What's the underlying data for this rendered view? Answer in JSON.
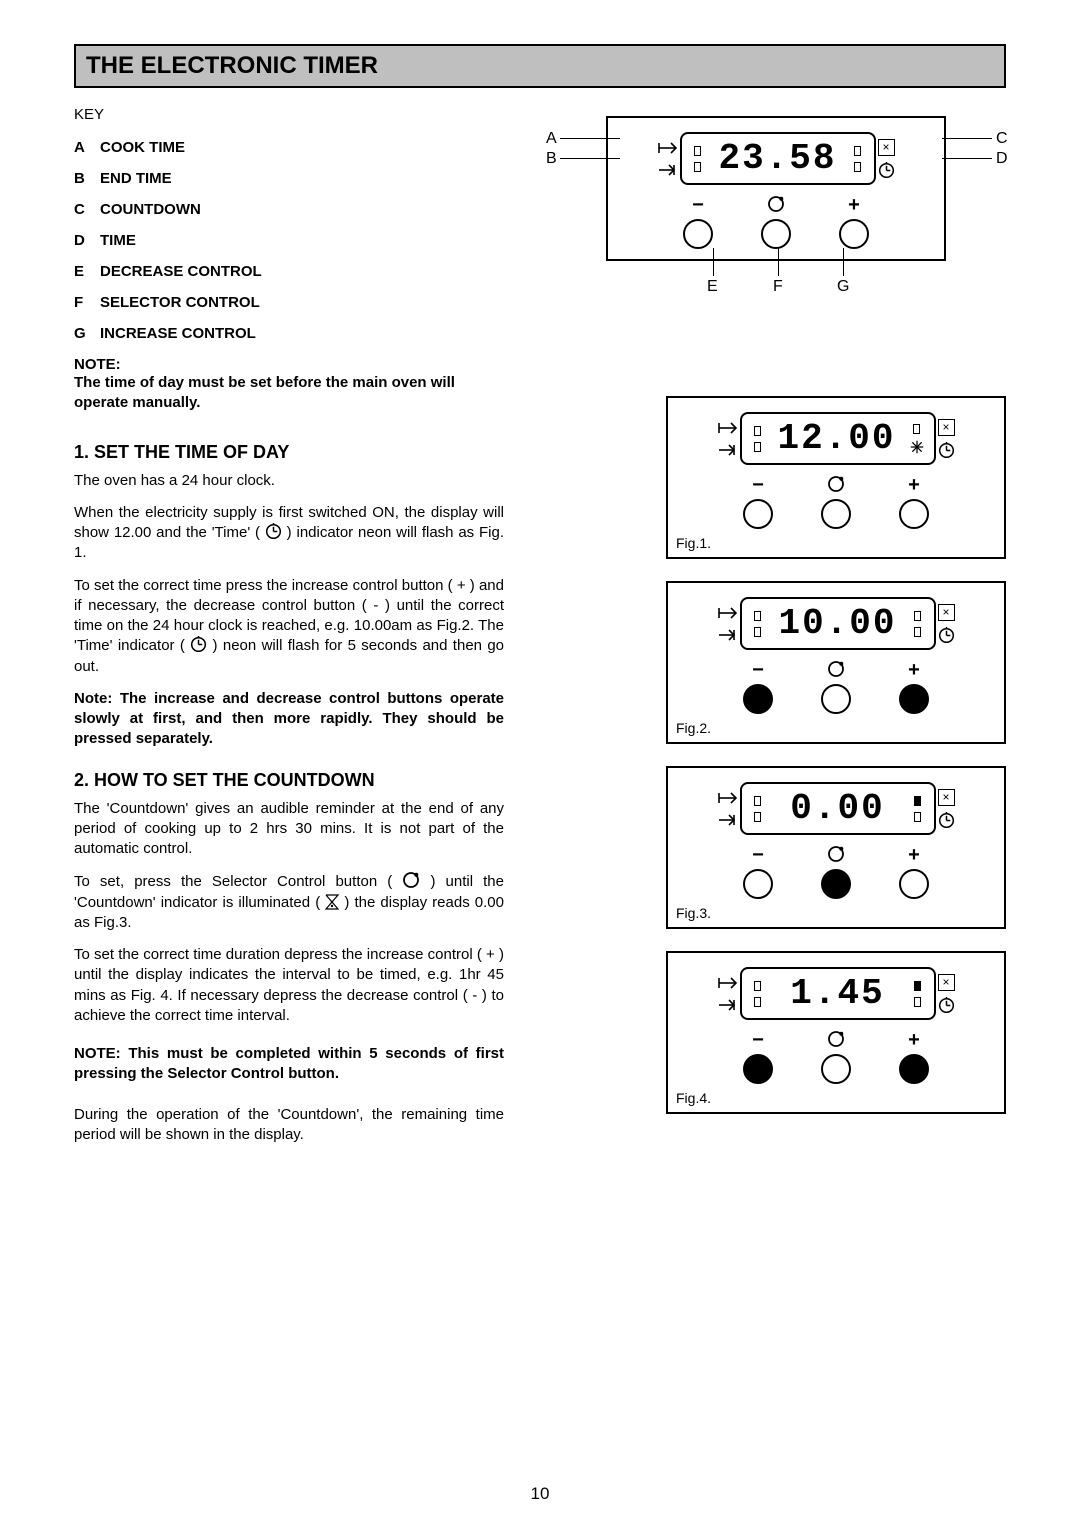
{
  "title": "THE ELECTRONIC TIMER",
  "key_heading": "KEY",
  "key_items": [
    {
      "letter": "A",
      "label": "COOK TIME"
    },
    {
      "letter": "B",
      "label": "END TIME"
    },
    {
      "letter": "C",
      "label": "COUNTDOWN"
    },
    {
      "letter": "D",
      "label": "TIME"
    },
    {
      "letter": "E",
      "label": "DECREASE CONTROL"
    },
    {
      "letter": "F",
      "label": "SELECTOR CONTROL"
    },
    {
      "letter": "G",
      "label": "INCREASE CONTROL"
    }
  ],
  "note": {
    "label": "NOTE:",
    "text": "The time of day must be set before the main oven will operate manually."
  },
  "section1": {
    "heading": "1.  SET THE TIME OF DAY",
    "p1": "The oven has a 24 hour clock.",
    "p2a": "When the electricity supply is first switched ON, the display will show 12.00 and the 'Time' (",
    "p2b": ") indicator neon will flash as Fig. 1.",
    "p3a": "To set the correct time press the increase control button ( + ) and if necessary, the decrease control button ( - ) until the correct time on the 24 hour clock is reached, e.g. 10.00am as Fig.2.   The 'Time' indicator (",
    "p3b": ") neon will flash for 5 seconds and then go out.",
    "p4": "Note: The increase and decrease control buttons operate slowly at first, and then more rapidly. They should be pressed separately."
  },
  "section2": {
    "heading": "2.  HOW TO SET THE COUNTDOWN",
    "p1": "The 'Countdown' gives an audible reminder at the end of any period of cooking up to 2 hrs 30 mins.  It is not part of the automatic control.",
    "p2a": "To set, press the Selector Control button ( ",
    "p2b": " ) until the 'Countdown' indicator is illuminated ( ",
    "p2c": " ) the display reads 0.00 as Fig.3.",
    "p3": "To set the correct time duration depress the increase control ( + ) until the display indicates the interval to be timed, e.g. 1hr 45 mins as Fig. 4.  If necessary depress the decrease control ( - ) to achieve the correct time interval.",
    "p4": "NOTE:  This must be completed within 5 seconds of first pressing the Selector Control button.",
    "p5": "During the operation of the 'Countdown', the remaining time period will be shown in the display."
  },
  "main_diagram": {
    "digits": "23.58",
    "labels": {
      "A": "A",
      "B": "B",
      "C": "C",
      "D": "D",
      "E": "E",
      "F": "F",
      "G": "G"
    }
  },
  "figures": [
    {
      "label": "Fig.1.",
      "digits": "12.00",
      "left_ind": [
        "empty",
        "empty"
      ],
      "right_ind": [
        "empty",
        "star"
      ],
      "buttons": [
        "open",
        "open",
        "open"
      ]
    },
    {
      "label": "Fig.2.",
      "digits": "10.00",
      "left_ind": [
        "empty",
        "empty"
      ],
      "right_ind": [
        "empty",
        "empty"
      ],
      "buttons": [
        "filled",
        "open",
        "filled"
      ]
    },
    {
      "label": "Fig.3.",
      "digits": "0.00",
      "left_ind": [
        "empty",
        "empty"
      ],
      "right_ind": [
        "filled",
        "empty"
      ],
      "buttons": [
        "open",
        "filled",
        "open"
      ]
    },
    {
      "label": "Fig.4.",
      "digits": "1.45",
      "left_ind": [
        "empty",
        "empty"
      ],
      "right_ind": [
        "filled",
        "empty"
      ],
      "buttons": [
        "filled",
        "open",
        "filled"
      ]
    }
  ],
  "page_number": "10",
  "styling": {
    "page_bg": "#ffffff",
    "text_color": "#000000",
    "title_bar_bg": "#bfbfbf",
    "body_fontsize": 15,
    "heading_fontsize": 18,
    "title_fontsize": 24,
    "digit_fontsize": 36,
    "button_symbols": {
      "minus": "−",
      "selector": "selector-icon",
      "plus": "+"
    }
  }
}
